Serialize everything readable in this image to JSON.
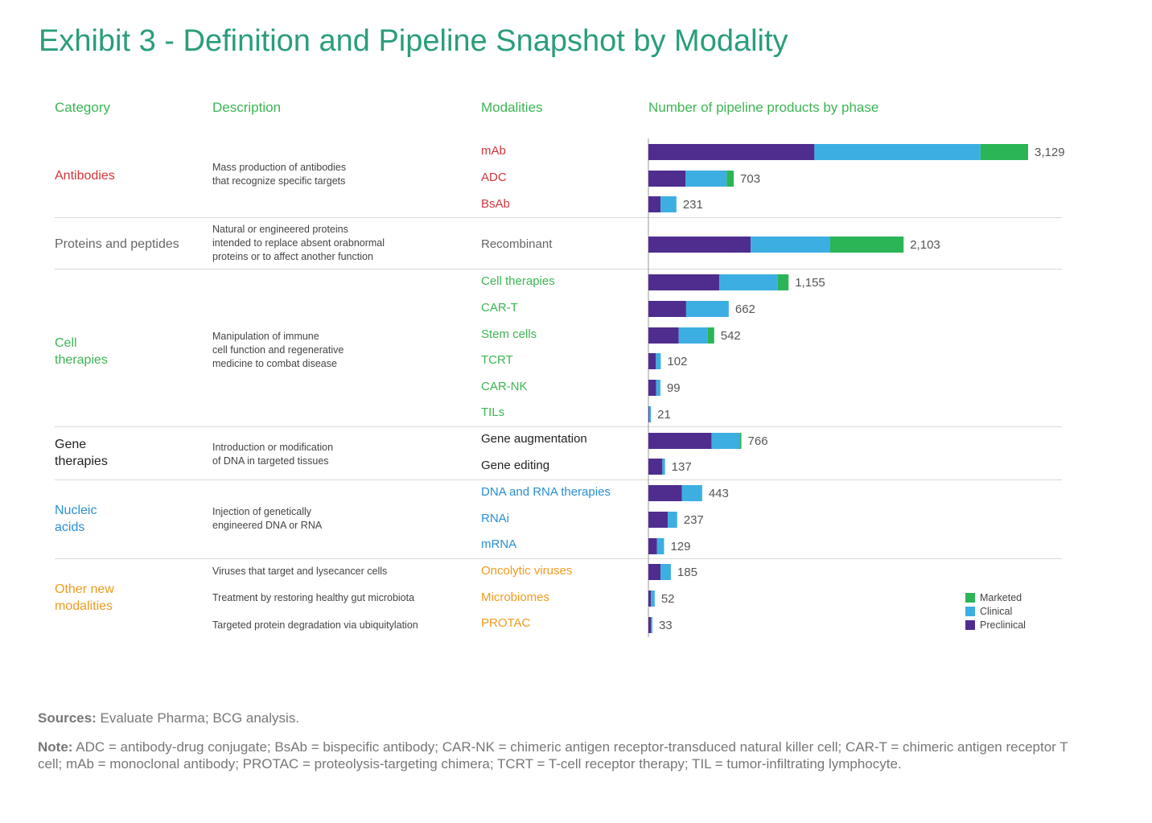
{
  "title": "Exhibit 3 - Definition and Pipeline Snapshot by Modality",
  "headers": {
    "category": "Category",
    "description": "Description",
    "modalities": "Modalities",
    "chart": "Number of pipeline products by phase"
  },
  "colors": {
    "marketed": "#2bb556",
    "clinical": "#3daee2",
    "preclinical": "#4f2d8f",
    "antibodies": "#d0353a",
    "proteins": "#666666",
    "cell": "#3cb553",
    "gene": "#222222",
    "nucleic": "#2a8fd0",
    "other": "#f19a1d"
  },
  "categories": [
    {
      "label": "Antibodies",
      "description": "Mass production of antibodies\nthat recognize specific targets"
    },
    {
      "label": "Proteins and peptides",
      "description": "Natural or engineered proteins\nintended to replace absent orabnormal\nproteins or to affect another function"
    },
    {
      "label": "Cell\ntherapies",
      "description": "Manipulation of immune\ncell function and regenerative\nmedicine to combat disease"
    },
    {
      "label": "Gene\ntherapies",
      "description": "Introduction or modification\nof DNA in targeted tissues"
    },
    {
      "label": "Nucleic\nacids",
      "description": "Injection of genetically\nengineered DNA or RNA"
    },
    {
      "label": "Other new\nmodalities",
      "descriptions": [
        "Viruses that target and lysecancer cells",
        "Treatment by restoring healthy gut microbiota",
        "Targeted protein degradation via ubiquitylation"
      ]
    }
  ],
  "chart_data": {
    "type": "bar",
    "orientation": "horizontal",
    "stacked": true,
    "title": "Number of pipeline products by phase",
    "categories": [
      "mAb",
      "ADC",
      "BsAb",
      "Recombinant",
      "Cell therapies",
      "CAR-T",
      "Stem cells",
      "TCRT",
      "CAR-NK",
      "TILs",
      "Gene augmentation",
      "Gene editing",
      "DNA and RNA therapies",
      "RNAi",
      "mRNA",
      "Oncolytic viruses",
      "Microbiomes",
      "PROTAC"
    ],
    "totals": [
      "3,129",
      "703",
      "231",
      "2,103",
      "1,155",
      "662",
      "542",
      "102",
      "99",
      "21",
      "766",
      "137",
      "443",
      "237",
      "129",
      "185",
      "52",
      "33"
    ],
    "series": [
      {
        "name": "Preclinical",
        "values": [
          1368,
          305,
          100,
          843,
          585,
          311,
          250,
          62,
          64,
          5,
          520,
          115,
          275,
          160,
          70,
          100,
          20,
          20
        ]
      },
      {
        "name": "Clinical",
        "values": [
          1368,
          340,
          131,
          655,
          480,
          351,
          240,
          40,
          35,
          16,
          230,
          22,
          168,
          77,
          59,
          85,
          32,
          13
        ]
      },
      {
        "name": "Marketed",
        "values": [
          393,
          58,
          0,
          605,
          90,
          0,
          52,
          0,
          0,
          0,
          16,
          0,
          0,
          0,
          0,
          0,
          0,
          0
        ]
      }
    ],
    "xlim": [
      0,
      3129
    ],
    "legend": {
      "position": "bottom-right",
      "items": [
        "Marketed",
        "Clinical",
        "Preclinical"
      ]
    }
  },
  "footer": {
    "sources_label": "Sources:",
    "sources_text": "Evaluate Pharma; BCG analysis.",
    "note_label": "Note:",
    "note_text": "ADC = antibody-drug conjugate; BsAb = bispecific antibody; CAR-NK = chimeric antigen receptor-transduced natural killer cell; CAR-T = chimeric antigen receptor T cell; mAb = monoclonal antibody; PROTAC = proteolysis-targeting chimera; TCRT = T-cell receptor therapy; TIL = tumor-infiltrating lymphocyte."
  }
}
